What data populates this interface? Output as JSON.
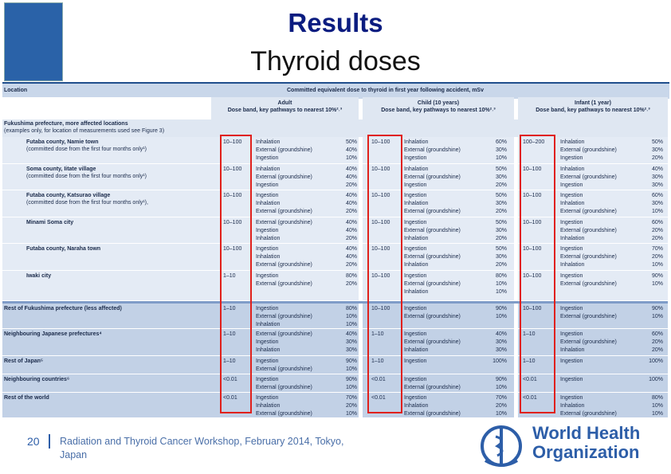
{
  "header": {
    "title": "Results",
    "subtitle": "Thyroid doses"
  },
  "table": {
    "location_heading": "Location",
    "dose_heading": "Committed equivalent dose to thyroid in first year following accident, mSv",
    "groups": [
      {
        "name": "Adult",
        "detail": "Dose band, key pathways to nearest 10%²˒³"
      },
      {
        "name": "Child (10 years)",
        "detail": "Dose band, key pathways to nearest 10%²˒³"
      },
      {
        "name": "Infant (1 year)",
        "detail": "Dose band, key pathways to nearest 10%²˒³"
      }
    ],
    "sections": [
      {
        "title": "Fukushima prefecture, more affected locations",
        "note": "(examples only, for location of measurements used see Figure 3)",
        "rows": [
          {
            "location": "Futaba county, Namie town",
            "note": "(committed dose from the first four months only¹)",
            "cells": [
              {
                "band": "10–100",
                "pathways": [
                  [
                    "Inhalation",
                    "50%"
                  ],
                  [
                    "External (groundshine)",
                    "40%"
                  ],
                  [
                    "Ingestion",
                    "10%"
                  ]
                ]
              },
              {
                "band": "10–100",
                "pathways": [
                  [
                    "Inhalation",
                    "60%"
                  ],
                  [
                    "External (groundshine)",
                    "30%"
                  ],
                  [
                    "Ingestion",
                    "10%"
                  ]
                ]
              },
              {
                "band": "100–200",
                "pathways": [
                  [
                    "Inhalation",
                    "50%"
                  ],
                  [
                    "External (groundshine)",
                    "30%"
                  ],
                  [
                    "Ingestion",
                    "20%"
                  ]
                ]
              }
            ]
          },
          {
            "location": "Soma county, Iitate village",
            "note": "(committed dose from the first four months only¹)",
            "cells": [
              {
                "band": "10–100",
                "pathways": [
                  [
                    "Inhalation",
                    "40%"
                  ],
                  [
                    "External (groundshine)",
                    "40%"
                  ],
                  [
                    "Ingestion",
                    "20%"
                  ]
                ]
              },
              {
                "band": "10–100",
                "pathways": [
                  [
                    "Inhalation",
                    "50%"
                  ],
                  [
                    "External (groundshine)",
                    "30%"
                  ],
                  [
                    "Ingestion",
                    "20%"
                  ]
                ]
              },
              {
                "band": "10–100",
                "pathways": [
                  [
                    "Inhalation",
                    "40%"
                  ],
                  [
                    "External (groundshine)",
                    "30%"
                  ],
                  [
                    "Ingestion",
                    "30%"
                  ]
                ]
              }
            ]
          },
          {
            "location": "Futaba county, Katsurao village",
            "note": "(committed dose from the first four months only¹),",
            "cells": [
              {
                "band": "10–100",
                "pathways": [
                  [
                    "Ingestion",
                    "40%"
                  ],
                  [
                    "Inhalation",
                    "40%"
                  ],
                  [
                    "External (groundshine)",
                    "20%"
                  ]
                ]
              },
              {
                "band": "10–100",
                "pathways": [
                  [
                    "Ingestion",
                    "50%"
                  ],
                  [
                    "Inhalation",
                    "30%"
                  ],
                  [
                    "External (groundshine)",
                    "20%"
                  ]
                ]
              },
              {
                "band": "10–100",
                "pathways": [
                  [
                    "Ingestion",
                    "60%"
                  ],
                  [
                    "Inhalation",
                    "30%"
                  ],
                  [
                    "External (groundshine)",
                    "10%"
                  ]
                ]
              }
            ]
          },
          {
            "location": "Minami Soma city",
            "cells": [
              {
                "band": "10–100",
                "pathways": [
                  [
                    "External (groundshine)",
                    "40%"
                  ],
                  [
                    "Ingestion",
                    "40%"
                  ],
                  [
                    "Inhalation",
                    "20%"
                  ]
                ]
              },
              {
                "band": "10–100",
                "pathways": [
                  [
                    "Ingestion",
                    "50%"
                  ],
                  [
                    "External (groundshine)",
                    "30%"
                  ],
                  [
                    "Inhalation",
                    "20%"
                  ]
                ]
              },
              {
                "band": "10–100",
                "pathways": [
                  [
                    "Ingestion",
                    "60%"
                  ],
                  [
                    "External (groundshine)",
                    "20%"
                  ],
                  [
                    "Inhalation",
                    "20%"
                  ]
                ]
              }
            ]
          },
          {
            "location": "Futaba county, Naraha town",
            "cells": [
              {
                "band": "10–100",
                "pathways": [
                  [
                    "Ingestion",
                    "40%"
                  ],
                  [
                    "Inhalation",
                    "40%"
                  ],
                  [
                    "External (groundshine)",
                    "20%"
                  ]
                ]
              },
              {
                "band": "10–100",
                "pathways": [
                  [
                    "Ingestion",
                    "50%"
                  ],
                  [
                    "External (groundshine)",
                    "30%"
                  ],
                  [
                    "Inhalation",
                    "20%"
                  ]
                ]
              },
              {
                "band": "10–100",
                "pathways": [
                  [
                    "Ingestion",
                    "70%"
                  ],
                  [
                    "External (groundshine)",
                    "20%"
                  ],
                  [
                    "Inhalation",
                    "10%"
                  ]
                ]
              }
            ]
          },
          {
            "location": "Iwaki city",
            "cells": [
              {
                "band": "1–10",
                "pathways": [
                  [
                    "Ingestion",
                    "80%"
                  ],
                  [
                    "External (groundshine)",
                    "20%"
                  ]
                ]
              },
              {
                "band": "10–100",
                "pathways": [
                  [
                    "Ingestion",
                    "80%"
                  ],
                  [
                    "External (groundshine)",
                    "10%"
                  ],
                  [
                    "Inhalation",
                    "10%"
                  ]
                ]
              },
              {
                "band": "10–100",
                "pathways": [
                  [
                    "Ingestion",
                    "90%"
                  ],
                  [
                    "External (groundshine)",
                    "10%"
                  ]
                ]
              }
            ]
          }
        ]
      },
      {
        "rows": [
          {
            "location": "Rest of Fukushima prefecture (less affected)",
            "cells": [
              {
                "band": "1–10",
                "pathways": [
                  [
                    "Ingestion",
                    "80%"
                  ],
                  [
                    "External (groundshine)",
                    "10%"
                  ],
                  [
                    "Inhalation",
                    "10%"
                  ]
                ]
              },
              {
                "band": "10–100",
                "pathways": [
                  [
                    "Ingestion",
                    "90%"
                  ],
                  [
                    "External (groundshine)",
                    "10%"
                  ]
                ]
              },
              {
                "band": "10–100",
                "pathways": [
                  [
                    "Ingestion",
                    "90%"
                  ],
                  [
                    "External (groundshine)",
                    "10%"
                  ]
                ]
              }
            ]
          },
          {
            "location": "Neighbouring Japanese prefectures⁴",
            "cells": [
              {
                "band": "1–10",
                "pathways": [
                  [
                    "External (groundshine)",
                    "40%"
                  ],
                  [
                    "Ingestion",
                    "30%"
                  ],
                  [
                    "Inhalation",
                    "30%"
                  ]
                ]
              },
              {
                "band": "1–10",
                "pathways": [
                  [
                    "Ingestion",
                    "40%"
                  ],
                  [
                    "External (groundshine)",
                    "30%"
                  ],
                  [
                    "Inhalation",
                    "30%"
                  ]
                ]
              },
              {
                "band": "1–10",
                "pathways": [
                  [
                    "Ingestion",
                    "60%"
                  ],
                  [
                    "External (groundshine)",
                    "20%"
                  ],
                  [
                    "Inhalation",
                    "20%"
                  ]
                ]
              }
            ]
          },
          {
            "location": "Rest of Japan⁵",
            "cells": [
              {
                "band": "1–10",
                "pathways": [
                  [
                    "Ingestion",
                    "90%"
                  ],
                  [
                    "External (groundshine)",
                    "10%"
                  ]
                ]
              },
              {
                "band": "1–10",
                "pathways": [
                  [
                    "Ingestion",
                    "100%"
                  ]
                ]
              },
              {
                "band": "1–10",
                "pathways": [
                  [
                    "Ingestion",
                    "100%"
                  ]
                ]
              }
            ]
          },
          {
            "location": "Neighbouring countries⁶",
            "cells": [
              {
                "band": "<0.01",
                "pathways": [
                  [
                    "Ingestion",
                    "90%"
                  ],
                  [
                    "External (groundshine)",
                    "10%"
                  ]
                ]
              },
              {
                "band": "<0.01",
                "pathways": [
                  [
                    "Ingestion",
                    "90%"
                  ],
                  [
                    "External (groundshine)",
                    "10%"
                  ]
                ]
              },
              {
                "band": "<0.01",
                "pathways": [
                  [
                    "Ingestion",
                    "100%"
                  ]
                ]
              }
            ]
          },
          {
            "location": "Rest of the world",
            "cells": [
              {
                "band": "<0.01",
                "pathways": [
                  [
                    "Ingestion",
                    "70%"
                  ],
                  [
                    "Inhalation",
                    "20%"
                  ],
                  [
                    "External (groundshine)",
                    "10%"
                  ]
                ]
              },
              {
                "band": "<0.01",
                "pathways": [
                  [
                    "Ingestion",
                    "70%"
                  ],
                  [
                    "Inhalation",
                    "20%"
                  ],
                  [
                    "External (groundshine)",
                    "10%"
                  ]
                ]
              },
              {
                "band": "<0.01",
                "pathways": [
                  [
                    "Ingestion",
                    "80%"
                  ],
                  [
                    "Inhalation",
                    "10%"
                  ],
                  [
                    "External (groundshine)",
                    "10%"
                  ]
                ]
              }
            ]
          }
        ]
      }
    ]
  },
  "footer": {
    "page": "20",
    "text": "Radiation and Thyroid Cancer Workshop, February 2014, Tokyo, Japan",
    "logo": [
      "World Health",
      "Organization"
    ]
  }
}
